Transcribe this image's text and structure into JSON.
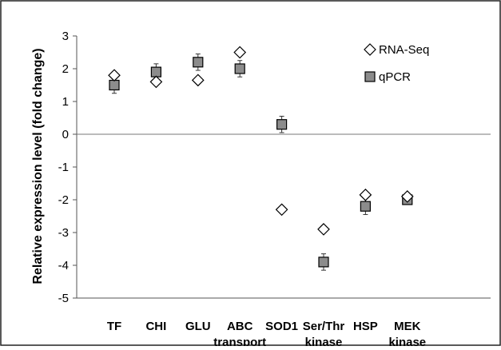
{
  "chart_data": {
    "type": "scatter",
    "title": "",
    "xlabel": "",
    "ylabel": "Relative expression level (fold change)",
    "ylim": [
      -5,
      3
    ],
    "yticks": [
      3,
      2,
      1,
      0,
      -1,
      -2,
      -3,
      -4,
      -5
    ],
    "categories": [
      {
        "line1": "TF",
        "line2": ""
      },
      {
        "line1": "CHI",
        "line2": ""
      },
      {
        "line1": "GLU",
        "line2": ""
      },
      {
        "line1": "ABC",
        "line2": "transport"
      },
      {
        "line1": "SOD1",
        "line2": ""
      },
      {
        "line1": "Ser/Thr",
        "line2": "kinase"
      },
      {
        "line1": "HSP",
        "line2": ""
      },
      {
        "line1": "MEK",
        "line2": "kinase"
      }
    ],
    "grid": false,
    "zero_line": true,
    "legend_position": "top-right",
    "series": [
      {
        "name": "RNA-Seq",
        "marker": "diamond",
        "fill": "#ffffff",
        "stroke": "#000000",
        "values": [
          1.8,
          1.6,
          1.65,
          2.5,
          -2.3,
          -2.9,
          -1.85,
          -1.9
        ]
      },
      {
        "name": "qPCR",
        "marker": "square",
        "fill": "#8c8c8c",
        "stroke": "#000000",
        "values": [
          1.5,
          1.9,
          2.2,
          2.0,
          0.3,
          -3.9,
          -2.2,
          -2.0
        ],
        "error": [
          0.25,
          0.25,
          0.25,
          0.25,
          0.25,
          0.25,
          0.25,
          0.0
        ]
      }
    ]
  }
}
